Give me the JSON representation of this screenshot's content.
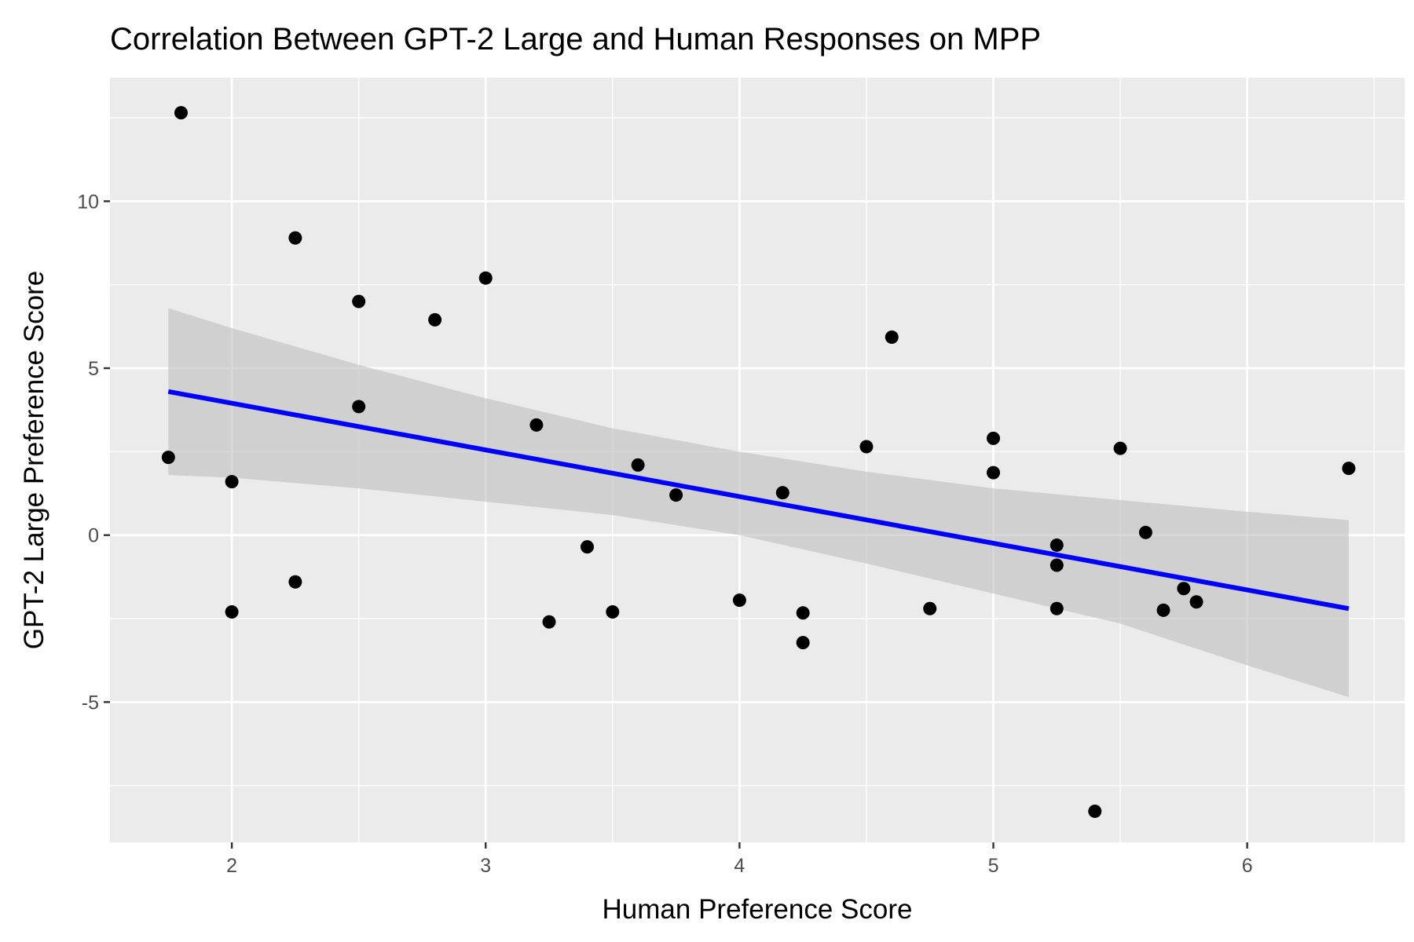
{
  "chart_data": {
    "type": "scatter",
    "title": "Correlation Between GPT-2 Large and Human Responses on MPP",
    "xlabel": "Human Preference Score",
    "ylabel": "GPT-2 Large Preference Score",
    "xlim": [
      1.52,
      6.62
    ],
    "ylim": [
      -9.2,
      13.7
    ],
    "x_ticks": [
      2,
      3,
      4,
      5,
      6
    ],
    "x_tick_labels": [
      "2",
      "3",
      "4",
      "5",
      "6"
    ],
    "y_ticks": [
      -5,
      0,
      5,
      10
    ],
    "y_tick_labels": [
      "-5",
      "0",
      "5",
      "10"
    ],
    "x_minor": [
      2.5,
      3.5,
      4.5,
      5.5,
      6.5
    ],
    "y_minor": [
      -7.5,
      -2.5,
      2.5,
      7.5,
      12.5
    ],
    "grid": true,
    "points": [
      {
        "x": 1.75,
        "y": 2.33
      },
      {
        "x": 1.8,
        "y": 12.65
      },
      {
        "x": 2.0,
        "y": 1.6
      },
      {
        "x": 2.0,
        "y": -2.3
      },
      {
        "x": 2.25,
        "y": 8.9
      },
      {
        "x": 2.25,
        "y": -1.4
      },
      {
        "x": 2.5,
        "y": 7.0
      },
      {
        "x": 2.5,
        "y": 3.85
      },
      {
        "x": 2.8,
        "y": 6.45
      },
      {
        "x": 3.0,
        "y": 7.7
      },
      {
        "x": 3.2,
        "y": 3.3
      },
      {
        "x": 3.25,
        "y": -2.6
      },
      {
        "x": 3.4,
        "y": -0.35
      },
      {
        "x": 3.5,
        "y": -2.3
      },
      {
        "x": 3.6,
        "y": 2.1
      },
      {
        "x": 3.75,
        "y": 1.2
      },
      {
        "x": 4.0,
        "y": -1.95
      },
      {
        "x": 4.17,
        "y": 1.27
      },
      {
        "x": 4.25,
        "y": -2.33
      },
      {
        "x": 4.25,
        "y": -3.22
      },
      {
        "x": 4.5,
        "y": 2.65
      },
      {
        "x": 4.6,
        "y": 5.93
      },
      {
        "x": 4.75,
        "y": -2.2
      },
      {
        "x": 5.0,
        "y": 2.9
      },
      {
        "x": 5.0,
        "y": 1.87
      },
      {
        "x": 5.25,
        "y": -0.3
      },
      {
        "x": 5.25,
        "y": -0.9
      },
      {
        "x": 5.25,
        "y": -2.2
      },
      {
        "x": 5.4,
        "y": -8.27
      },
      {
        "x": 5.5,
        "y": 2.6
      },
      {
        "x": 5.6,
        "y": 0.08
      },
      {
        "x": 5.67,
        "y": -2.25
      },
      {
        "x": 5.75,
        "y": -1.6
      },
      {
        "x": 5.8,
        "y": -2.0
      },
      {
        "x": 6.4,
        "y": 2.0
      }
    ],
    "fit_line": {
      "x": [
        1.75,
        6.4
      ],
      "y": [
        4.3,
        -2.2
      ],
      "color": "#0000ff"
    },
    "confidence_band": {
      "x": [
        1.75,
        2.0,
        2.5,
        3.0,
        3.5,
        4.0,
        4.5,
        5.0,
        5.5,
        6.0,
        6.4
      ],
      "upper": [
        6.8,
        6.2,
        5.1,
        4.1,
        3.2,
        2.5,
        1.9,
        1.4,
        1.05,
        0.7,
        0.45
      ],
      "lower": [
        1.8,
        1.72,
        1.4,
        1.0,
        0.6,
        0.0,
        -0.85,
        -1.75,
        -2.65,
        -3.9,
        -4.85
      ]
    },
    "colors": {
      "panel": "#ebebeb",
      "grid": "#ffffff",
      "band": "#bebebe",
      "point": "#000000",
      "tick": "#333333"
    }
  }
}
